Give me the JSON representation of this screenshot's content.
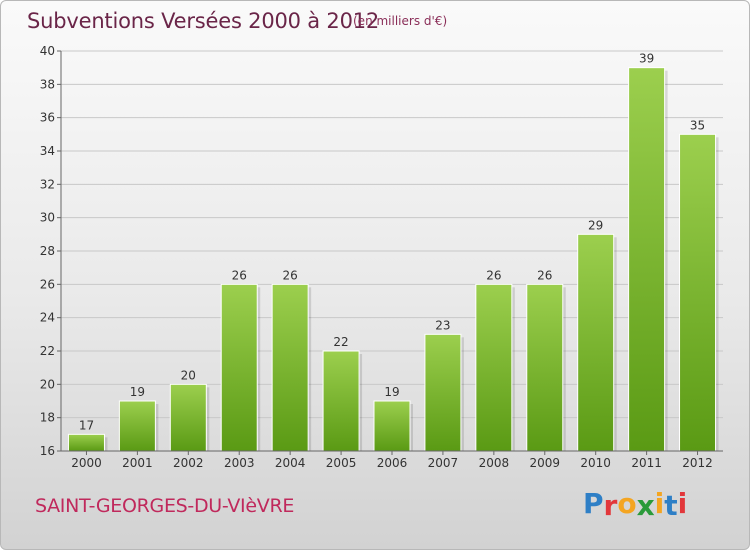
{
  "header": {
    "title": "Subventions Versées 2000 à 2012",
    "subtitle": "(en milliers d'€)"
  },
  "footer": {
    "commune": "SAINT-GEORGES-DU-VIèVRE",
    "logo_letters": [
      "P",
      "r",
      "o",
      "x",
      "i",
      "t",
      "i"
    ],
    "logo_colors": [
      "#2e7fc6",
      "#e2373b",
      "#f4a521",
      "#2a9a3a",
      "#f4a521",
      "#2e7fc6",
      "#e2373b"
    ]
  },
  "chart_data": {
    "type": "bar",
    "categories": [
      "2000",
      "2001",
      "2002",
      "2003",
      "2004",
      "2005",
      "2006",
      "2007",
      "2008",
      "2009",
      "2010",
      "2011",
      "2012"
    ],
    "values": [
      17,
      19,
      20,
      26,
      26,
      22,
      19,
      23,
      26,
      26,
      29,
      39,
      35
    ],
    "ylim": [
      16,
      40
    ],
    "yticks": [
      16,
      18,
      20,
      22,
      24,
      26,
      28,
      30,
      32,
      34,
      36,
      38,
      40
    ],
    "grid": true,
    "bar_color_top": "#9ccf4e",
    "bar_color_bottom": "#5a9a14"
  }
}
